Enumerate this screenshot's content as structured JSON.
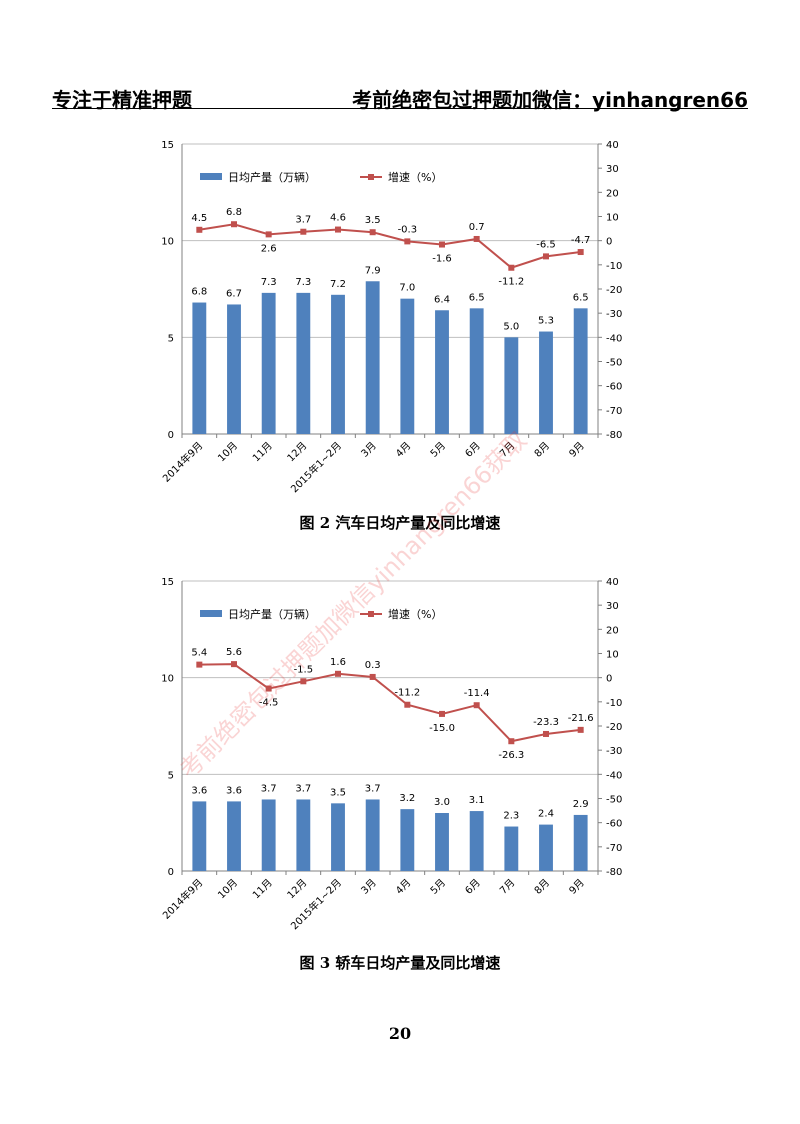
{
  "header": {
    "left": "专注于精准押题",
    "right": "考前绝密包过押题加微信：yinhangren66"
  },
  "watermark": "考前绝密包过押题加微信yinhangren66获取",
  "page_number": "20",
  "colors": {
    "bar": "#4f81bd",
    "line": "#c0504d",
    "grid": "#bfbfbf",
    "axis": "#808080"
  },
  "chart_data": [
    {
      "type": "bar",
      "caption": "图 2  汽车日均产量及同比增速",
      "categories": [
        "2014年9月",
        "10月",
        "11月",
        "12月",
        "2015年1~2月",
        "3月",
        "4月",
        "5月",
        "6月",
        "7月",
        "8月",
        "9月"
      ],
      "left_axis": {
        "ylim": [
          0,
          15
        ],
        "ticks": [
          "0",
          "5",
          "10",
          "15"
        ]
      },
      "right_axis": {
        "ylim": [
          -80,
          40
        ],
        "ticks": [
          "-80",
          "-70",
          "-60",
          "-50",
          "-40",
          "-30",
          "-20",
          "-10",
          "0",
          "10",
          "20",
          "30",
          "40"
        ]
      },
      "grid": true,
      "legend_position": "top-left",
      "series": [
        {
          "name": "日均产量（万辆）",
          "kind": "bar",
          "axis": "left",
          "values": [
            6.8,
            6.7,
            7.3,
            7.3,
            7.2,
            7.9,
            7.0,
            6.4,
            6.5,
            5.0,
            5.3,
            6.5
          ],
          "labels": [
            "6.8",
            "6.7",
            "7.3",
            "7.3",
            "7.2",
            "7.9",
            "7.0",
            "6.4",
            "6.5",
            "5.0",
            "5.3",
            "6.5"
          ]
        },
        {
          "name": "增速（%）",
          "kind": "line",
          "axis": "right",
          "values": [
            4.5,
            6.8,
            2.6,
            3.7,
            4.6,
            3.5,
            -0.3,
            -1.6,
            0.7,
            -11.2,
            -6.5,
            -4.7
          ],
          "labels": [
            "4.5",
            "6.8",
            "2.6",
            "3.7",
            "4.6",
            "3.5",
            "-0.3",
            "-1.6",
            "0.7",
            "-11.2",
            "-6.5",
            "-4.7"
          ]
        }
      ]
    },
    {
      "type": "bar",
      "caption": "图 3  轿车日均产量及同比增速",
      "categories": [
        "2014年9月",
        "10月",
        "11月",
        "12月",
        "2015年1~2月",
        "3月",
        "4月",
        "5月",
        "6月",
        "7月",
        "8月",
        "9月"
      ],
      "left_axis": {
        "ylim": [
          0,
          15
        ],
        "ticks": [
          "0",
          "5",
          "10",
          "15"
        ]
      },
      "right_axis": {
        "ylim": [
          -80,
          40
        ],
        "ticks": [
          "-80",
          "-70",
          "-60",
          "-50",
          "-40",
          "-30",
          "-20",
          "-10",
          "0",
          "10",
          "20",
          "30",
          "40"
        ]
      },
      "grid": true,
      "legend_position": "top-left",
      "series": [
        {
          "name": "日均产量（万辆）",
          "kind": "bar",
          "axis": "left",
          "values": [
            3.6,
            3.6,
            3.7,
            3.7,
            3.5,
            3.7,
            3.2,
            3.0,
            3.1,
            2.3,
            2.4,
            2.9
          ],
          "labels": [
            "3.6",
            "3.6",
            "3.7",
            "3.7",
            "3.5",
            "3.7",
            "3.2",
            "3.0",
            "3.1",
            "2.3",
            "2.4",
            "2.9"
          ]
        },
        {
          "name": "增速（%）",
          "kind": "line",
          "axis": "right",
          "values": [
            5.4,
            5.6,
            -4.5,
            -1.5,
            1.6,
            0.3,
            -11.2,
            -15.0,
            -11.4,
            -26.3,
            -23.3,
            -21.6
          ],
          "labels": [
            "5.4",
            "5.6",
            "-4.5",
            "-1.5",
            "1.6",
            "0.3",
            "-11.2",
            "-15.0",
            "-11.4",
            "-26.3",
            "-23.3",
            "-21.6"
          ]
        }
      ]
    }
  ]
}
